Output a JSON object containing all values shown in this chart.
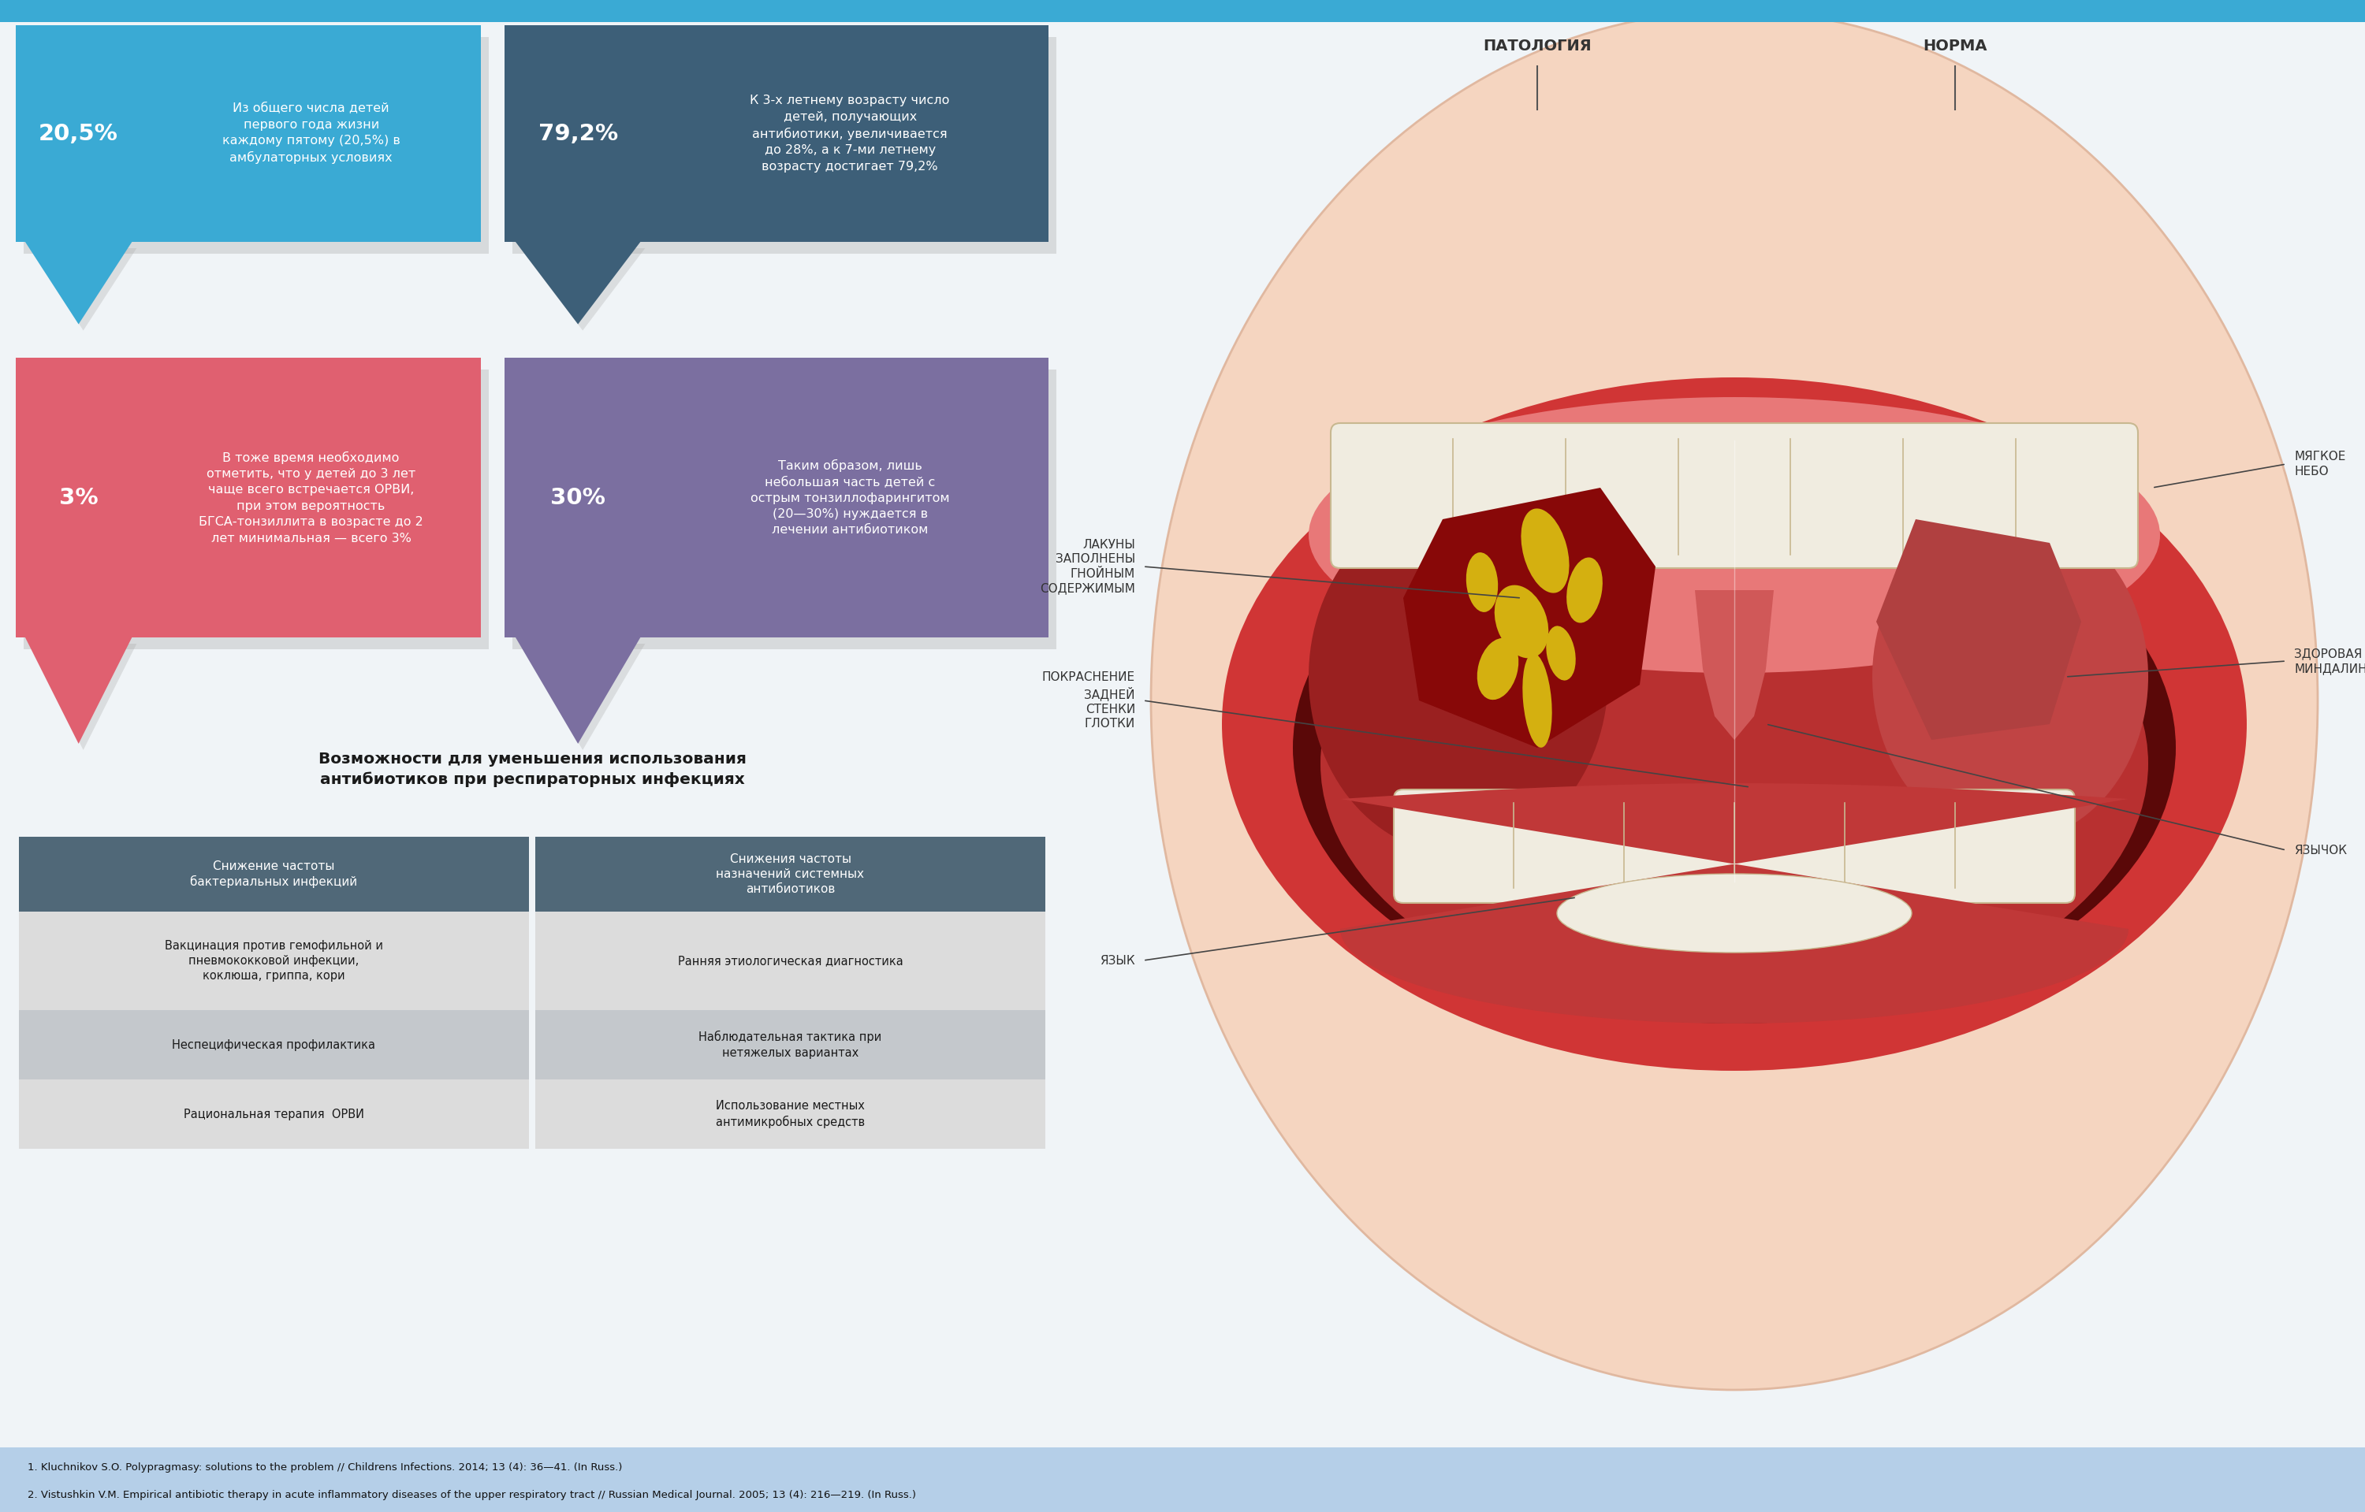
{
  "bg_color": "#f0f4f7",
  "top_bar_color": "#3aaad4",
  "box1_color": "#3aaad4",
  "box1_num": "20,5%",
  "box1_text": "Из общего числа детей\nпервого года жизни\nкаждому пятому (20,5%) в\nамбулаторных условиях",
  "box2_color": "#3d5f78",
  "box2_num": "79,2%",
  "box2_text": "К 3-х летнему возрасту число\nдетей, получающих\nантибиотики, увеличивается\nдо 28%, а к 7-ми летнему\nвозрасту достигает 79,2%",
  "box3_color": "#e06070",
  "box3_num": "3%",
  "box3_text": "В тоже время необходимо\nотметить, что у детей до 3 лет\nчаще всего встречается ОРВИ,\nпри этом вероятность\nБГСА-тонзиллита в возрасте до 2\nлет минимальная — всего 3%",
  "box4_color": "#7b6fa0",
  "box4_num": "30%",
  "box4_text": "Таким образом, лишь\nнебольшая часть детей с\nострым тонзиллофарингитом\n(20—30%) нуждается в\nлечении антибиотиком",
  "table_title": "Возможности для уменьшения использования\nантибиотиков при респираторных инфекциях",
  "table_header1": "Снижение частоты\nбактериальных инфекций",
  "table_header2": "Снижения частоты\nназначений системных\nантибиотиков",
  "table_header_color": "#506878",
  "table_row1_col1": "Вакцинация против гемофильной и\nпневмококковой инфекции,\nкоклюша, гриппа, кори",
  "table_row1_col2": "Ранняя этиологическая диагностика",
  "table_row2_col1": "Неспецифическая профилактика",
  "table_row2_col2": "Наблюдательная тактика при\nнетяжелых вариантах",
  "table_row3_col1": "Рациональная терапия  ОРВИ",
  "table_row3_col2": "Использование местных\nантимикробных средств",
  "footer_color": "#b5cfe8",
  "footer_text1": "1. Kluchnikov S.O. Polypragmasy: solutions to the problem // Childrens Infections. 2014; 13 (4): 36—41. (In Russ.)",
  "footer_text2": "2. Vistushkin V.M. Empirical antibiotic therapy in acute inflammatory diseases of the upper respiratory tract // Russian Medical Journal. 2005; 13 (4): 216—219. (In Russ.)",
  "label_pathology": "ПАТОЛОГИЯ",
  "label_norma": "НОРМА",
  "label_soft_palate": "МЯГКОЕ\nНЕБО",
  "label_healthy_tonsil": "ЗДОРОВАЯ\nМИНДАЛИНА",
  "label_lacunae": "ЛАКУНЫ\nЗАПОЛНЕНЫ\nГНОЙНЫМ\nСОДЕРЖИМЫМ",
  "label_redness": "ПОКРАСНЕНИЕ\nЗАДНЕЙ\nСТЕНКИ\nГЛОТКИ",
  "label_tongue": "ЯЗЫК",
  "label_uvula": "ЯЗЫЧОК"
}
